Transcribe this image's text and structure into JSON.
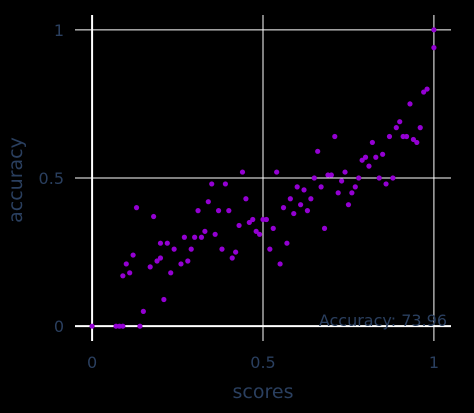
{
  "chart_data": {
    "type": "scatter",
    "xlabel": "scores",
    "ylabel": "accuracy",
    "xlim": [
      -0.05,
      1.05
    ],
    "ylim": [
      -0.05,
      1.05
    ],
    "x_ticks": [
      0,
      0.5,
      1
    ],
    "x_tick_labels": [
      "0",
      "0.5",
      "1"
    ],
    "y_ticks": [
      0,
      0.5,
      1
    ],
    "y_tick_labels": [
      "0",
      "0.5",
      "1"
    ],
    "grid": true,
    "annotation": "Accuracy: 73.96",
    "colors": {
      "background": "#000000",
      "grid": "#ffffff",
      "marker": "#9400d3",
      "text": "#2a3f5f"
    },
    "series": [
      {
        "color": "#9400d3",
        "points": [
          [
            0.0,
            0.0
          ],
          [
            0.07,
            0.0
          ],
          [
            0.08,
            0.0
          ],
          [
            0.09,
            0.0
          ],
          [
            0.14,
            0.0
          ],
          [
            0.15,
            0.05
          ],
          [
            0.17,
            0.2
          ],
          [
            0.18,
            0.37
          ],
          [
            0.21,
            0.09
          ],
          [
            0.09,
            0.17
          ],
          [
            0.1,
            0.21
          ],
          [
            0.12,
            0.24
          ],
          [
            0.11,
            0.18
          ],
          [
            0.13,
            0.4
          ],
          [
            0.19,
            0.22
          ],
          [
            0.2,
            0.28
          ],
          [
            0.2,
            0.23
          ],
          [
            0.22,
            0.28
          ],
          [
            0.23,
            0.18
          ],
          [
            0.24,
            0.26
          ],
          [
            0.26,
            0.21
          ],
          [
            0.27,
            0.3
          ],
          [
            0.28,
            0.22
          ],
          [
            0.29,
            0.26
          ],
          [
            0.3,
            0.3
          ],
          [
            0.31,
            0.39
          ],
          [
            0.32,
            0.3
          ],
          [
            0.33,
            0.32
          ],
          [
            0.34,
            0.42
          ],
          [
            0.35,
            0.48
          ],
          [
            0.36,
            0.31
          ],
          [
            0.37,
            0.39
          ],
          [
            0.38,
            0.26
          ],
          [
            0.39,
            0.48
          ],
          [
            0.4,
            0.39
          ],
          [
            0.41,
            0.23
          ],
          [
            0.42,
            0.25
          ],
          [
            0.43,
            0.34
          ],
          [
            0.44,
            0.52
          ],
          [
            0.45,
            0.43
          ],
          [
            0.46,
            0.35
          ],
          [
            0.47,
            0.36
          ],
          [
            0.48,
            0.32
          ],
          [
            0.49,
            0.31
          ],
          [
            0.5,
            0.36
          ],
          [
            0.51,
            0.36
          ],
          [
            0.52,
            0.26
          ],
          [
            0.53,
            0.33
          ],
          [
            0.54,
            0.52
          ],
          [
            0.55,
            0.21
          ],
          [
            0.56,
            0.4
          ],
          [
            0.57,
            0.28
          ],
          [
            0.58,
            0.43
          ],
          [
            0.59,
            0.38
          ],
          [
            0.6,
            0.47
          ],
          [
            0.61,
            0.41
          ],
          [
            0.62,
            0.46
          ],
          [
            0.63,
            0.39
          ],
          [
            0.64,
            0.43
          ],
          [
            0.65,
            0.5
          ],
          [
            0.66,
            0.59
          ],
          [
            0.67,
            0.47
          ],
          [
            0.68,
            0.33
          ],
          [
            0.69,
            0.51
          ],
          [
            0.7,
            0.51
          ],
          [
            0.71,
            0.64
          ],
          [
            0.72,
            0.45
          ],
          [
            0.73,
            0.49
          ],
          [
            0.74,
            0.52
          ],
          [
            0.75,
            0.41
          ],
          [
            0.76,
            0.45
          ],
          [
            0.77,
            0.47
          ],
          [
            0.78,
            0.5
          ],
          [
            0.79,
            0.56
          ],
          [
            0.8,
            0.57
          ],
          [
            0.81,
            0.54
          ],
          [
            0.82,
            0.62
          ],
          [
            0.83,
            0.57
          ],
          [
            0.84,
            0.5
          ],
          [
            0.85,
            0.58
          ],
          [
            0.86,
            0.48
          ],
          [
            0.87,
            0.64
          ],
          [
            0.88,
            0.5
          ],
          [
            0.89,
            0.67
          ],
          [
            0.9,
            0.69
          ],
          [
            0.91,
            0.64
          ],
          [
            0.92,
            0.64
          ],
          [
            0.93,
            0.75
          ],
          [
            0.94,
            0.63
          ],
          [
            0.95,
            0.62
          ],
          [
            0.96,
            0.67
          ],
          [
            0.97,
            0.79
          ],
          [
            0.98,
            0.8
          ],
          [
            1.0,
            0.94
          ],
          [
            1.0,
            1.0
          ]
        ]
      }
    ]
  }
}
